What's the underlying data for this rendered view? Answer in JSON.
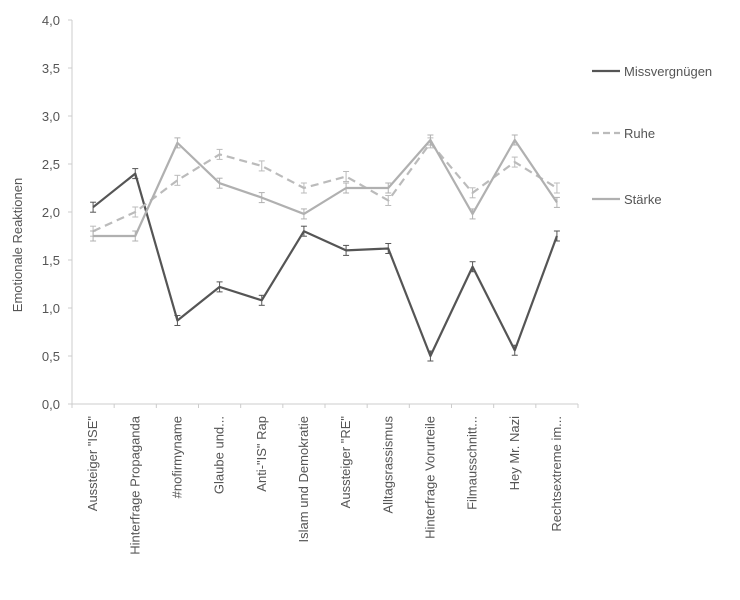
{
  "chart_data": {
    "type": "line",
    "ylabel": "Emotionale Reaktionen",
    "ylim": [
      0,
      4
    ],
    "yticks": [
      "0,0",
      "0,5",
      "1,0",
      "1,5",
      "2,0",
      "2,5",
      "3,0",
      "3,5",
      "4,0"
    ],
    "grid": false,
    "legend": "right",
    "categories": [
      "Aussteiger \"ISE\"",
      "Hinterfrage Propaganda",
      "#nofirmyname",
      "Glaube und...",
      "Anti-\"IS\" Rap",
      "Islam und Demokratie",
      "Aussteiger \"RE\"",
      "Alltagsrassismus",
      "Hinterfrage Vorurteile",
      "Filmausschnitt...",
      "Hey Mr. Nazi",
      "Rechtsextreme im..."
    ],
    "series": [
      {
        "name": "Missvergnügen",
        "style": "solid",
        "color": "#555555",
        "values": [
          2.05,
          2.4,
          0.87,
          1.22,
          1.08,
          1.8,
          1.6,
          1.62,
          0.5,
          1.43,
          0.56,
          1.75
        ]
      },
      {
        "name": "Ruhe",
        "style": "dashed",
        "color": "#bbbbbb",
        "values": [
          1.8,
          2.0,
          2.33,
          2.6,
          2.48,
          2.25,
          2.37,
          2.12,
          2.72,
          2.2,
          2.52,
          2.25
        ]
      },
      {
        "name": "Stärke",
        "style": "solid",
        "color": "#b0b0b0",
        "values": [
          1.75,
          1.75,
          2.72,
          2.3,
          2.15,
          1.98,
          2.25,
          2.25,
          2.75,
          1.98,
          2.75,
          2.1
        ]
      }
    ]
  }
}
